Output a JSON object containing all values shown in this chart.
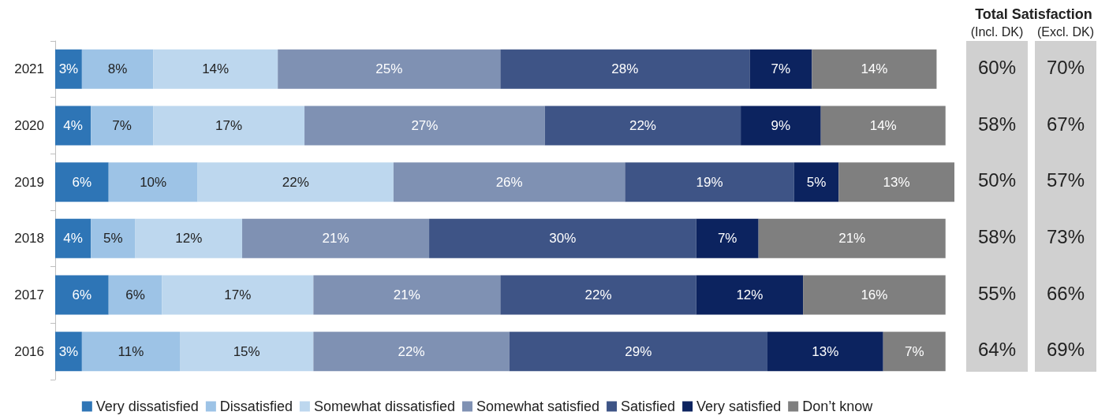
{
  "chart_data": [
    {
      "type": "bar",
      "orientation": "horizontal",
      "stacked": true,
      "categories": [
        "2021",
        "2020",
        "2019",
        "2018",
        "2017",
        "2016"
      ],
      "xlim": [
        0,
        101
      ],
      "tick_labels": "y",
      "legend": "bottom",
      "grid": false,
      "series": [
        {
          "name": "Very dissatisfied",
          "color": "#2e75b6",
          "values": [
            3,
            4,
            6,
            4,
            6,
            3
          ],
          "value_labels": [
            "3%",
            "4%",
            "6%",
            "4%",
            "6%",
            "3%"
          ]
        },
        {
          "name": "Dissatisfied",
          "color": "#9dc3e6",
          "values": [
            8,
            7,
            10,
            5,
            6,
            11
          ],
          "value_labels": [
            "8%",
            "7%",
            "10%",
            "5%",
            "6%",
            "11%"
          ]
        },
        {
          "name": "Somewhat dissatisfied",
          "color": "#bdd7ee",
          "values": [
            14,
            17,
            22,
            12,
            17,
            15
          ],
          "value_labels": [
            "14%",
            "17%",
            "22%",
            "12%",
            "17%",
            "15%"
          ]
        },
        {
          "name": "Somewhat satisfied",
          "color": "#7f91b3",
          "values": [
            25,
            27,
            26,
            21,
            21,
            22
          ],
          "value_labels": [
            "25%",
            "27%",
            "26%",
            "21%",
            "21%",
            "22%"
          ]
        },
        {
          "name": "Satisfied",
          "color": "#3e5486",
          "values": [
            28,
            22,
            19,
            30,
            22,
            29
          ],
          "value_labels": [
            "28%",
            "22%",
            "19%",
            "30%",
            "22%",
            "29%"
          ]
        },
        {
          "name": "Very satisfied",
          "color": "#0c235f",
          "values": [
            7,
            9,
            5,
            7,
            12,
            13
          ],
          "value_labels": [
            "7%",
            "9%",
            "5%",
            "7%",
            "12%",
            "13%"
          ]
        },
        {
          "name": "Don’t know",
          "color": "#7f7f7f",
          "values": [
            14,
            14,
            13,
            21,
            16,
            7
          ],
          "value_labels": [
            "14%",
            "14%",
            "13%",
            "21%",
            "16%",
            "7%"
          ]
        }
      ]
    },
    {
      "type": "other",
      "title": "Total Satisfaction",
      "categories": [
        "(Incl. DK)",
        "(Excl. DK)"
      ],
      "annotations": [
        "60%",
        "70%",
        "58%",
        "67%",
        "50%",
        "57%",
        "58%",
        "73%",
        "55%",
        "66%",
        "64%",
        "69%"
      ]
    }
  ]
}
